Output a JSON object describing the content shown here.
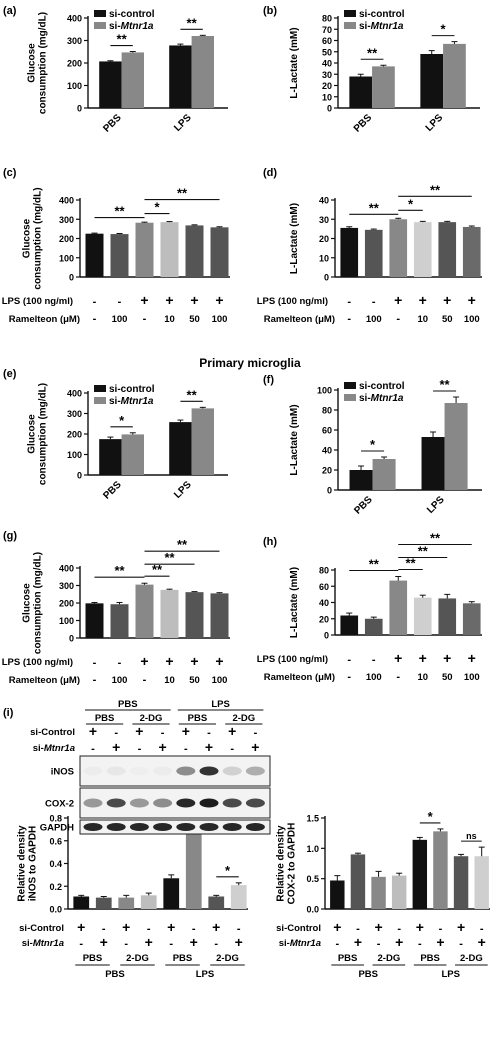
{
  "section_title": "Primary microglia",
  "colors": {
    "black": "#111111",
    "dark_gray": "#555555",
    "mid_gray": "#888888",
    "light_gray": "#bdbdbd",
    "pale_gray": "#cfcfcf"
  },
  "treatment_rows": {
    "lps_label": "LPS (100 ng/ml)",
    "ramelteon_label": "Ramelteon (μM)",
    "lps_values": [
      "-",
      "-",
      "+",
      "+",
      "+",
      "+"
    ],
    "ramelteon_values": [
      "-",
      "100",
      "-",
      "10",
      "50",
      "100"
    ]
  },
  "western_blot": {
    "panel_label": "(i)",
    "row_labels": [
      "si-Control",
      "si-Mtnr1a"
    ],
    "group_top": [
      "PBS",
      "LPS"
    ],
    "group_sub": [
      "PBS",
      "2-DG",
      "PBS",
      "2-DG"
    ],
    "control_signs": [
      "+",
      "-",
      "+",
      "-",
      "+",
      "-",
      "+",
      "-"
    ],
    "mtnr1a_signs": [
      "-",
      "+",
      "-",
      "+",
      "-",
      "+",
      "-",
      "+"
    ],
    "bands": [
      "iNOS",
      "COX-2",
      "GAPDH"
    ]
  },
  "chart_data": [
    {
      "panel": "(a)",
      "type": "bar",
      "ylabel": "Glucose consumption (mg/dL)",
      "ylim": [
        0,
        400
      ],
      "yticks": [
        0,
        100,
        200,
        300,
        400
      ],
      "categories": [
        "PBS",
        "LPS"
      ],
      "series": [
        {
          "name": "si-control",
          "values": [
            207,
            278
          ],
          "errors": [
            3,
            6
          ]
        },
        {
          "name": "si-Mtnr1a",
          "values": [
            247,
            320
          ],
          "errors": [
            4,
            3
          ]
        }
      ],
      "annotations": [
        "**",
        "**"
      ],
      "legend": "top-left"
    },
    {
      "panel": "(b)",
      "type": "bar",
      "ylabel": "L-Lactate (mM)",
      "ylim": [
        0,
        80
      ],
      "yticks": [
        0,
        10,
        20,
        30,
        40,
        50,
        60,
        70,
        80
      ],
      "categories": [
        "PBS",
        "LPS"
      ],
      "series": [
        {
          "name": "si-control",
          "values": [
            28,
            48
          ],
          "errors": [
            2,
            3
          ]
        },
        {
          "name": "si-Mtnr1a",
          "values": [
            37,
            57
          ],
          "errors": [
            1,
            2
          ]
        }
      ],
      "annotations": [
        "**",
        "*"
      ],
      "legend": "top-left"
    },
    {
      "panel": "(c)",
      "type": "bar",
      "ylabel": "Glucose consumption (mg/dL)",
      "ylim": [
        0,
        400
      ],
      "yticks": [
        0,
        100,
        200,
        300,
        400
      ],
      "values": [
        225,
        223,
        282,
        285,
        268,
        258
      ],
      "errors": [
        3,
        3,
        3,
        3,
        3,
        3
      ],
      "annotations": [
        "**",
        "*",
        "**"
      ]
    },
    {
      "panel": "(d)",
      "type": "bar",
      "ylabel": "L-Lactate (mM)",
      "ylim": [
        0,
        40
      ],
      "yticks": [
        0,
        10,
        20,
        30,
        40
      ],
      "values": [
        25.5,
        24.5,
        30,
        28.5,
        28.5,
        26
      ],
      "errors": [
        0.6,
        0.4,
        0.5,
        0.4,
        0.4,
        0.5
      ],
      "annotations": [
        "**",
        "*",
        "**"
      ]
    },
    {
      "panel": "(e)",
      "type": "bar",
      "ylabel": "Glucose consumption (mg/dL)",
      "ylim": [
        0,
        400
      ],
      "yticks": [
        0,
        100,
        200,
        300,
        400
      ],
      "categories": [
        "PBS",
        "LPS"
      ],
      "series": [
        {
          "name": "si-control",
          "values": [
            175,
            258
          ],
          "errors": [
            10,
            10
          ]
        },
        {
          "name": "si-Mtnr1a",
          "values": [
            198,
            325
          ],
          "errors": [
            8,
            5
          ]
        }
      ],
      "annotations": [
        "*",
        "**"
      ],
      "legend": "top-left"
    },
    {
      "panel": "(f)",
      "type": "bar",
      "ylabel": "L-Lactate (mM)",
      "ylim": [
        0,
        100
      ],
      "yticks": [
        0,
        20,
        40,
        60,
        80,
        100
      ],
      "categories": [
        "PBS",
        "LPS"
      ],
      "series": [
        {
          "name": "si-control",
          "values": [
            20,
            53
          ],
          "errors": [
            4,
            5
          ]
        },
        {
          "name": "si-Mtnr1a",
          "values": [
            31,
            87
          ],
          "errors": [
            2,
            6
          ]
        }
      ],
      "annotations": [
        "*",
        "**"
      ],
      "legend": "top-left"
    },
    {
      "panel": "(g)",
      "type": "bar",
      "ylabel": "Glucose consumption (mg/dL)",
      "ylim": [
        0,
        400
      ],
      "yticks": [
        0,
        100,
        200,
        300,
        400
      ],
      "values": [
        198,
        193,
        305,
        275,
        262,
        255
      ],
      "errors": [
        5,
        10,
        8,
        4,
        3,
        4
      ],
      "annotations": [
        "**",
        "**",
        "**",
        "**"
      ]
    },
    {
      "panel": "(h)",
      "type": "bar",
      "ylabel": "L-Lactate (mM)",
      "ylim": [
        0,
        80
      ],
      "yticks": [
        0,
        20,
        40,
        60,
        80
      ],
      "values": [
        24,
        20,
        67,
        46,
        45,
        39
      ],
      "errors": [
        3,
        2,
        5,
        3,
        5,
        2
      ],
      "annotations": [
        "**",
        "**",
        "**",
        "**"
      ]
    },
    {
      "panel": "(i-1)",
      "type": "bar",
      "ylabel": "Relative density iNOS to GAPDH",
      "ylim": [
        0,
        0.8
      ],
      "yticks": [
        0.0,
        0.2,
        0.4,
        0.6,
        0.8
      ],
      "values": [
        0.11,
        0.1,
        0.1,
        0.12,
        0.27,
        0.68,
        0.11,
        0.21
      ],
      "errors": [
        0.01,
        0.01,
        0.02,
        0.02,
        0.03,
        0.08,
        0.01,
        0.02
      ],
      "annotations": [
        "**",
        "*"
      ]
    },
    {
      "panel": "(i-2)",
      "type": "bar",
      "ylabel": "Relative density COX-2 to GAPDH",
      "ylim": [
        0,
        1.5
      ],
      "yticks": [
        0.0,
        0.5,
        1.0,
        1.5
      ],
      "values": [
        0.47,
        0.9,
        0.53,
        0.55,
        1.14,
        1.28,
        0.87,
        0.87
      ],
      "errors": [
        0.08,
        0.02,
        0.09,
        0.04,
        0.04,
        0.04,
        0.03,
        0.15
      ],
      "annotations": [
        "*",
        "ns"
      ]
    }
  ]
}
